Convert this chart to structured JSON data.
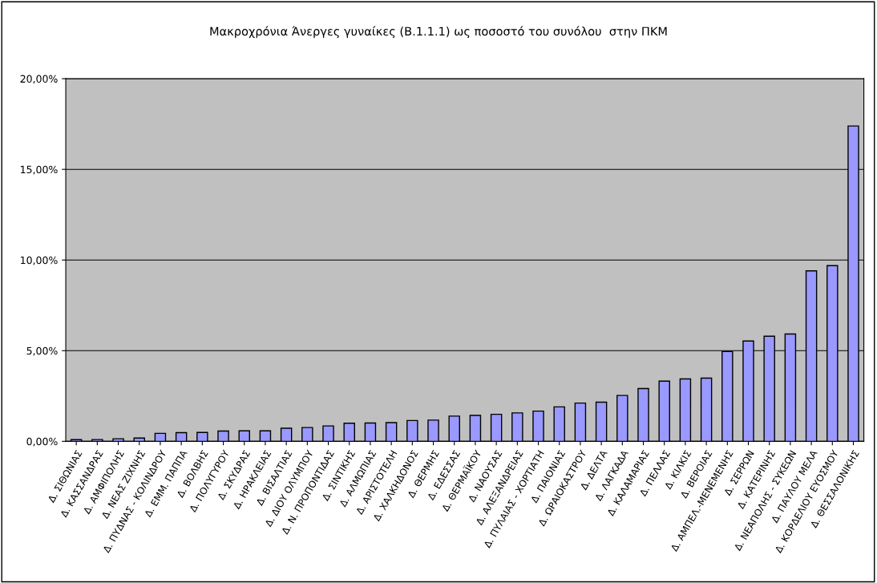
{
  "chart_data": {
    "type": "bar",
    "title": "Μακροχρόνια Άνεργες γυναίκες (Β.1.1.1) ως ποσοστό του συνόλου  στην ΠΚΜ",
    "categories": [
      "Δ. ΣΙΘΩΝΙΑΣ",
      "Δ. ΚΑΣΣΑΝΔΡΑΣ",
      "Δ. ΑΜΦΙΠΟΛΗΣ",
      "Δ. ΝΕΑΣ ΖΙΧΝΗΣ",
      "Δ. ΠΥΔΝΑΣ - ΚΟΛΙΝΔΡΟΥ",
      "Δ. ΕΜΜ. ΠΑΠΠΑ",
      "Δ. ΒΟΛΒΗΣ",
      "Δ. ΠΟΛΥΓΥΡΟΥ",
      "Δ. ΣΚΥΔΡΑΣ",
      "Δ. ΗΡΑΚΛΕΙΑΣ",
      "Δ. ΒΙΣΑΛΤΙΑΣ",
      "Δ. ΔΙΟΥ ΟΛΥΜΠΟΥ",
      "Δ. Ν. ΠΡΟΠΟΝΤΙΔΑΣ",
      "Δ. ΣΙΝΤΙΚΗΣ",
      "Δ. ΑΛΜΩΠΙΑΣ",
      "Δ. ΑΡΙΣΤΟΤΕΛΗ",
      "Δ. ΧΑΛΚΗΔΟΝΟΣ",
      "Δ. ΘΕΡΜΗΣ",
      "Δ. ΕΔΕΣΣΑΣ",
      "Δ. ΘΕΡΜΑΪΚΟΥ",
      "Δ. ΝΑΟΥΣΑΣ",
      "Δ. ΑΛΕΞΑΝΔΡΕΙΑΣ",
      "Δ. ΠΥΛΑΙΑΣ - ΧΟΡΤΙΑΤΗ",
      "Δ. ΠΑΙΟΝΙΑΣ",
      "Δ. ΩΡΑΙΟΚΑΣΤΡΟΥ",
      "Δ. ΔΕΛΤΑ",
      "Δ. ΛΑΓΚΑΔΑ",
      "Δ. ΚΑΛΑΜΑΡΙΑΣ",
      "Δ. ΠΕΛΛΑΣ",
      "Δ. ΚΙΛΚΙΣ",
      "Δ. ΒΕΡΟΙΑΣ",
      "Δ. ΑΜΠΕΛ.-ΜΕΝΕΜΕΝΗΣ",
      "Δ. ΣΕΡΡΩΝ",
      "Δ. ΚΑΤΕΡΙΝΗΣ",
      "Δ. ΝΕΑΠΟΛΗΣ - ΣΥΚΕΩΝ",
      "Δ. ΠΑΥΛΟΥ ΜΕΛΑ",
      "Δ. ΚΟΡΔΕΛΙΟΥ ΕΥΟΣΜΟΥ",
      "Δ. ΘΕΣΣΑΛΟΝΙΚΗΣ"
    ],
    "values": [
      0.09,
      0.1,
      0.14,
      0.18,
      0.44,
      0.48,
      0.49,
      0.57,
      0.58,
      0.58,
      0.72,
      0.76,
      0.85,
      1.0,
      1.01,
      1.03,
      1.15,
      1.17,
      1.39,
      1.43,
      1.49,
      1.57,
      1.67,
      1.9,
      2.11,
      2.16,
      2.53,
      2.91,
      3.32,
      3.44,
      3.49,
      4.95,
      5.53,
      5.8,
      5.92,
      9.4,
      9.69,
      17.39
    ],
    "color": "#9999ff",
    "ylim": [
      0,
      20
    ],
    "yticks": [
      {
        "value": 0,
        "label": "0,00%"
      },
      {
        "value": 5,
        "label": "5,00%"
      },
      {
        "value": 10,
        "label": "10,00%"
      },
      {
        "value": 15,
        "label": "15,00%"
      },
      {
        "value": 20,
        "label": "20,00%"
      }
    ],
    "grid": "y"
  }
}
